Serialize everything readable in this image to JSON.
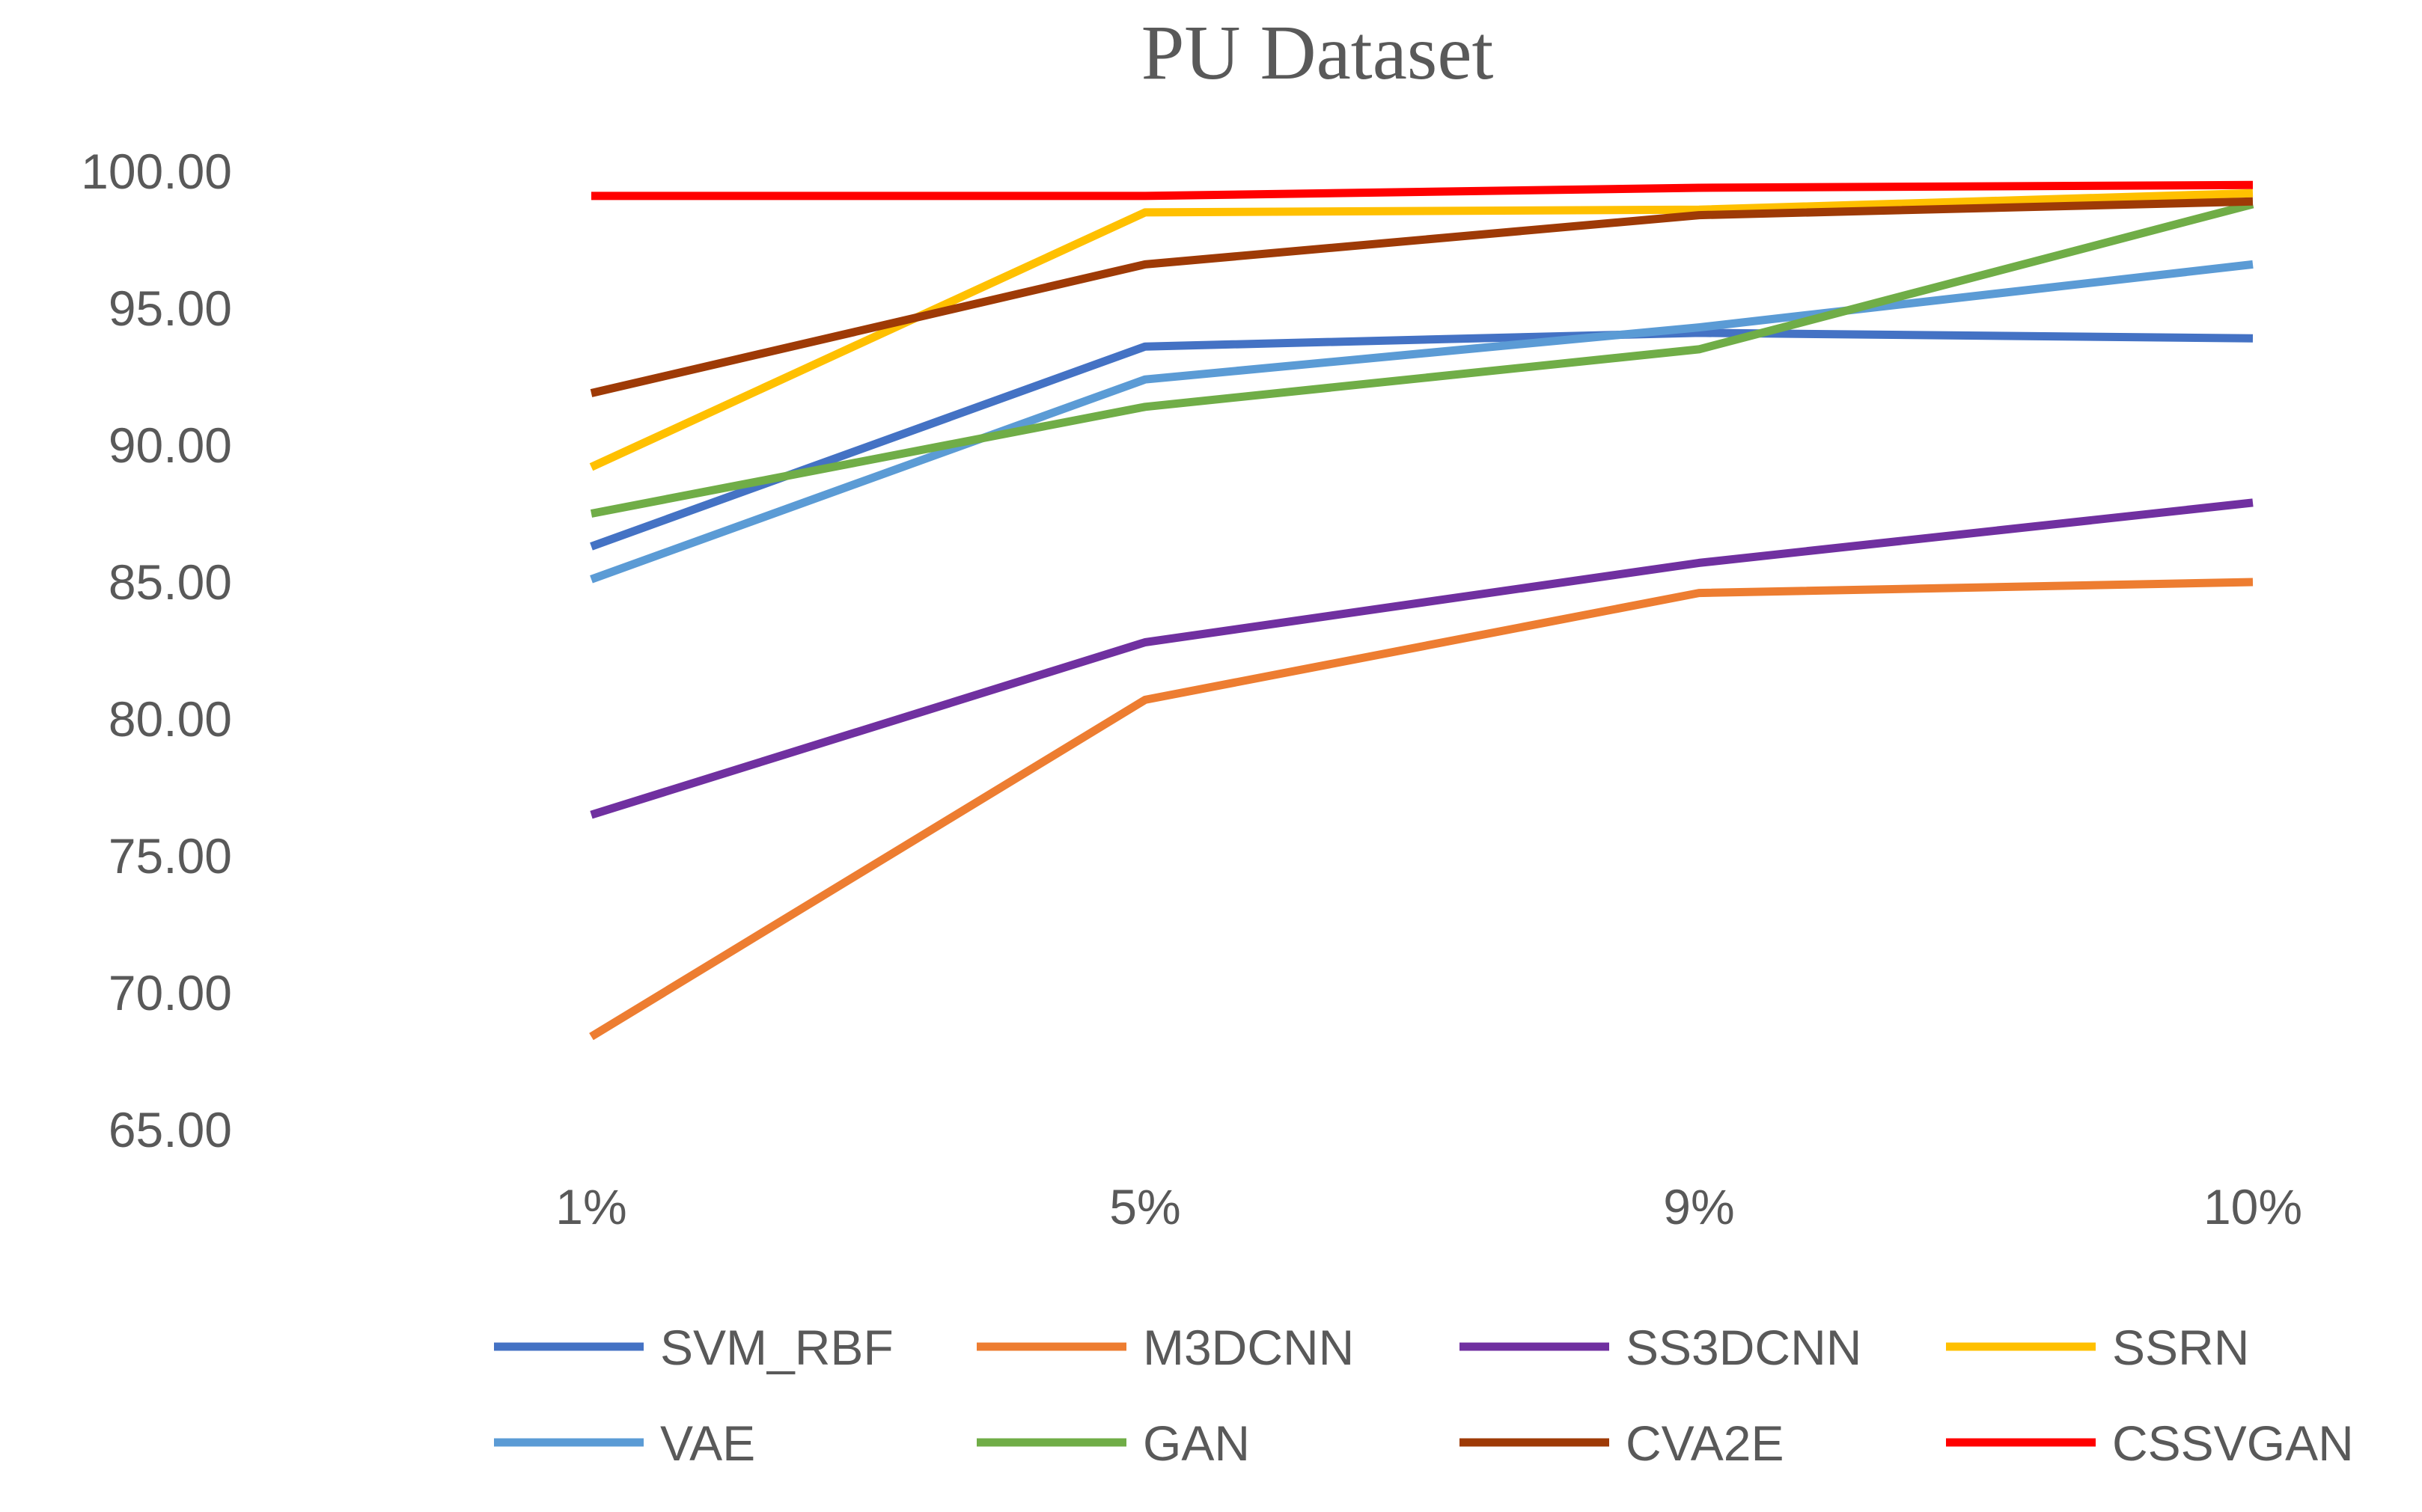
{
  "chart_data": {
    "type": "line",
    "title": "PU Dataset",
    "xlabel": "",
    "ylabel": "",
    "categories": [
      "1%",
      "5%",
      "9%",
      "10%"
    ],
    "ylim": [
      65,
      100
    ],
    "yticks": [
      "65.00",
      "70.00",
      "75.00",
      "80.00",
      "85.00",
      "90.00",
      "95.00",
      "100.00"
    ],
    "ytick_values": [
      65,
      70,
      75,
      80,
      85,
      90,
      95,
      100
    ],
    "grid": false,
    "legend_position": "bottom",
    "series": [
      {
        "name": "SVM_RBF",
        "color": "#4472C4",
        "values": [
          86.3,
          93.6,
          94.1,
          93.9
        ]
      },
      {
        "name": "M3DCNN",
        "color": "#ED7D31",
        "values": [
          68.4,
          80.7,
          84.6,
          85.0
        ]
      },
      {
        "name": "SS3DCNN",
        "color": "#7030A0",
        "values": [
          76.5,
          82.8,
          85.7,
          87.9
        ]
      },
      {
        "name": "SSRN",
        "color": "#FFC000",
        "values": [
          89.2,
          98.5,
          98.6,
          99.2
        ]
      },
      {
        "name": "VAE",
        "color": "#5B9BD5",
        "values": [
          85.1,
          92.4,
          94.3,
          96.6
        ]
      },
      {
        "name": "GAN",
        "color": "#70AD47",
        "values": [
          87.5,
          91.4,
          93.5,
          98.8
        ]
      },
      {
        "name": "CVA2E",
        "color": "#9E3A06",
        "values": [
          91.9,
          96.6,
          98.4,
          98.9
        ]
      },
      {
        "name": "CSSVGAN",
        "color": "#FF0000",
        "values": [
          99.1,
          99.1,
          99.4,
          99.5
        ]
      }
    ]
  }
}
